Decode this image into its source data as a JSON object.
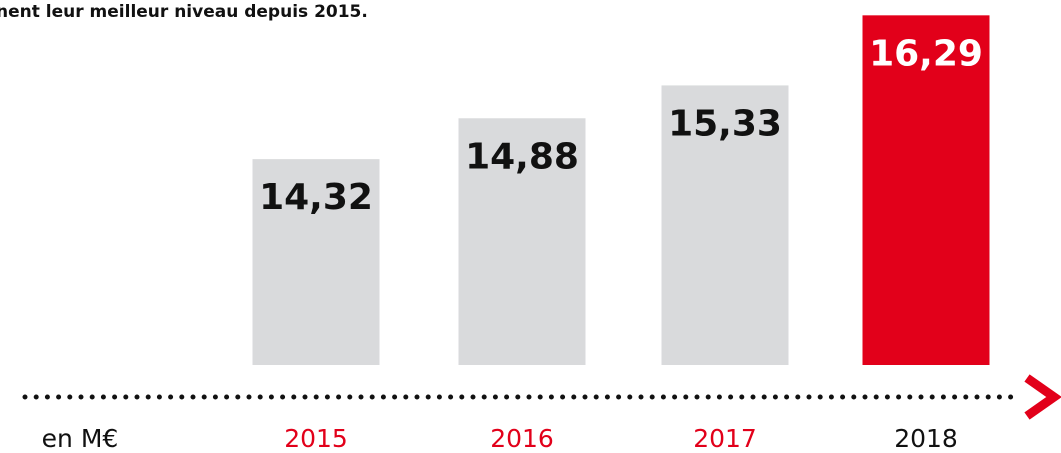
{
  "chart_data": {
    "type": "bar",
    "title": "nent leur meilleur niveau depuis 2015.",
    "unit_label": "en M€",
    "categories": [
      "2015",
      "2016",
      "2017",
      "2018"
    ],
    "values": [
      14.32,
      14.88,
      15.33,
      16.29
    ],
    "value_labels": [
      "14,32",
      "14,88",
      "15,33",
      "16,29"
    ],
    "colors": [
      "#d9dadc",
      "#d9dadc",
      "#d9dadc",
      "#e2001a"
    ],
    "value_label_colors": [
      "#111111",
      "#111111",
      "#111111",
      "#ffffff"
    ],
    "category_colors": [
      "#e2001a",
      "#e2001a",
      "#e2001a",
      "#111111"
    ],
    "ylim": [
      11.5,
      16.5
    ]
  }
}
